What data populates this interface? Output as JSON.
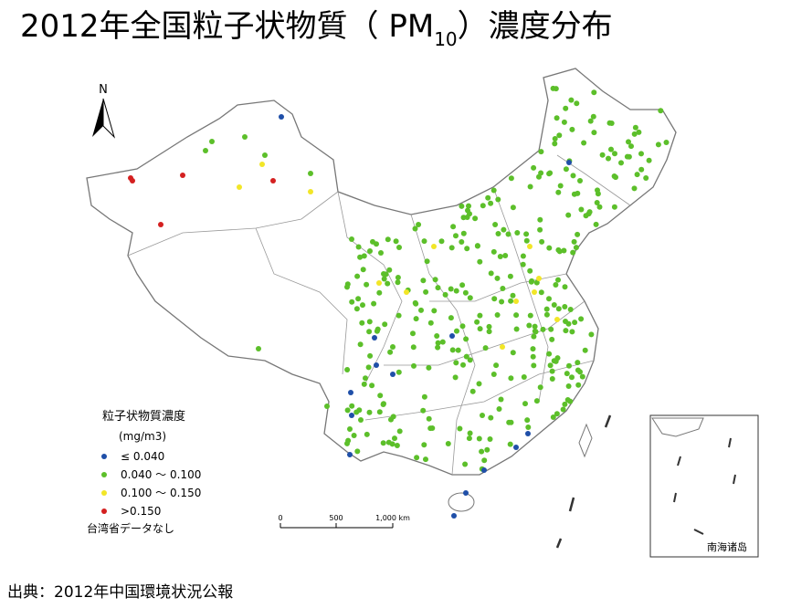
{
  "title": {
    "main": "2012年全国粒子状物質（ PM",
    "subscript": "10",
    "end": "）濃度分布"
  },
  "north": "N",
  "legend": {
    "title": "粒子状物質濃度",
    "unit": "(mg/m3)",
    "items": [
      {
        "label": "≤ 0.040",
        "color": "#1f4fa8"
      },
      {
        "label": "0.040 ～ 0.100",
        "color": "#5cbf2a"
      },
      {
        "label": "0.100 ～ 0.150",
        "color": "#f2e627"
      },
      {
        "label": ">0.150",
        "color": "#d42020"
      }
    ],
    "note": "台湾省データなし"
  },
  "scale": {
    "labels": [
      "0",
      "500",
      "1,000 km"
    ]
  },
  "inset": {
    "label": "南海诸岛"
  },
  "source": "出典：2012年中国環境状況公報"
}
